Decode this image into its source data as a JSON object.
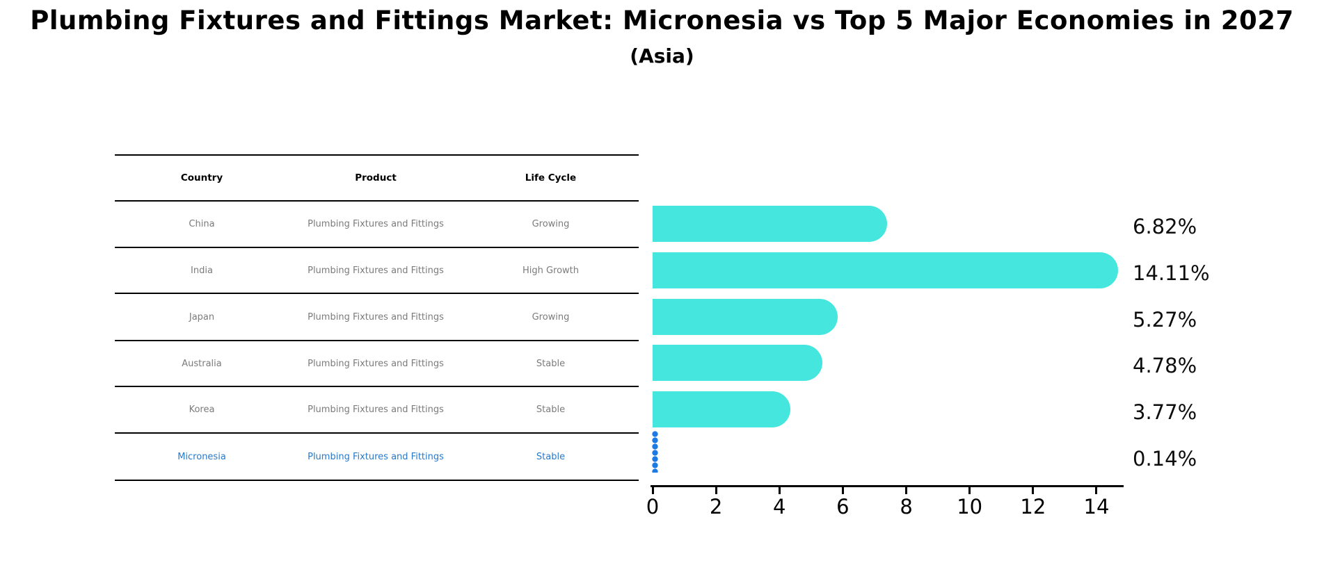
{
  "header": {
    "title": "Plumbing Fixtures and Fittings Market: Micronesia vs Top 5 Major Economies in 2027",
    "subtitle": "(Asia)"
  },
  "table": {
    "columns": [
      "Country",
      "Product",
      "Life Cycle"
    ],
    "rows": [
      {
        "country": "China",
        "product": "Plumbing Fixtures and Fittings",
        "life_cycle": "Growing"
      },
      {
        "country": "India",
        "product": "Plumbing Fixtures and Fittings",
        "life_cycle": "High Growth"
      },
      {
        "country": "Japan",
        "product": "Plumbing Fixtures and Fittings",
        "life_cycle": "Growing"
      },
      {
        "country": "Australia",
        "product": "Plumbing Fixtures and Fittings",
        "life_cycle": "Stable"
      },
      {
        "country": "Korea",
        "product": "Plumbing Fixtures and Fittings",
        "life_cycle": "Stable"
      },
      {
        "country": "Micronesia",
        "product": "Plumbing Fixtures and Fittings",
        "life_cycle": "Stable"
      }
    ]
  },
  "chart_data": {
    "type": "bar",
    "orientation": "horizontal",
    "categories": [
      "China",
      "India",
      "Japan",
      "Australia",
      "Korea",
      "Micronesia"
    ],
    "values": [
      6.82,
      14.11,
      5.27,
      4.78,
      3.77,
      0.14
    ],
    "value_labels": [
      "6.82%",
      "14.11%",
      "5.27%",
      "4.78%",
      "3.77%",
      "0.14%"
    ],
    "x_ticks": [
      "0",
      "2",
      "4",
      "6",
      "8",
      "10",
      "12",
      "14"
    ],
    "x_tick_values": [
      0,
      2,
      4,
      6,
      8,
      10,
      12,
      14
    ],
    "xlim": [
      0,
      14.9
    ],
    "grid": false,
    "legend": "none",
    "bar_color": "#45e6de",
    "highlight_color": "#1e7ae0",
    "highlight_text_color": "#2878c8",
    "highlight_index": 5,
    "title": "Plumbing Fixtures and Fittings Market: Micronesia vs Top 5 Major Economies in 2027",
    "subtitle": "(Asia)",
    "xlabel": "",
    "ylabel": ""
  }
}
